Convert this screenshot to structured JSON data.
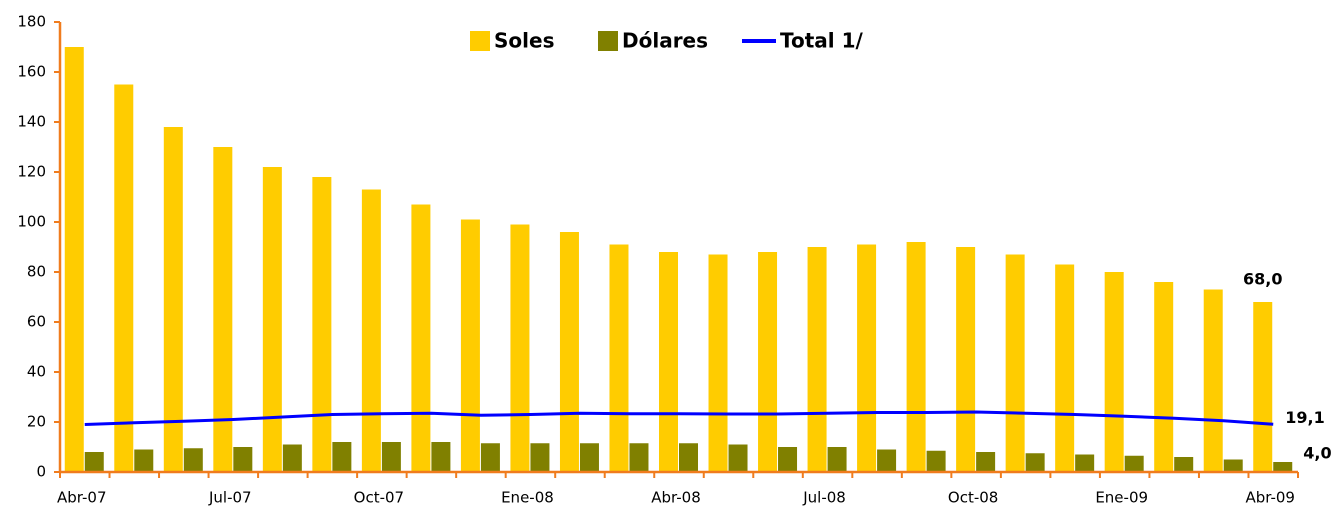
{
  "chart_data": {
    "type": "bar",
    "categories": [
      "Abr-07",
      null,
      null,
      "Jul-07",
      null,
      null,
      "Oct-07",
      null,
      null,
      "Ene-08",
      null,
      null,
      "Abr-08",
      null,
      null,
      "Jul-08",
      null,
      null,
      "Oct-08",
      null,
      null,
      "Ene-09",
      null,
      null,
      "Abr-09"
    ],
    "series": [
      {
        "name": "Soles",
        "color": "#ffcc00",
        "kind": "bar",
        "values": [
          170,
          155,
          138,
          130,
          122,
          118,
          113,
          107,
          101,
          99,
          96,
          91,
          88,
          87,
          88,
          90,
          91,
          92,
          90,
          87,
          83,
          80,
          76,
          73,
          68
        ],
        "value_labels": [
          null,
          null,
          null,
          null,
          null,
          null,
          null,
          null,
          null,
          null,
          null,
          null,
          null,
          null,
          null,
          null,
          null,
          null,
          null,
          null,
          null,
          null,
          null,
          null,
          "68,0"
        ]
      },
      {
        "name": "Dólares",
        "color": "#808000",
        "kind": "bar",
        "values": [
          8,
          9,
          9.5,
          10,
          11,
          12,
          12,
          12,
          11.5,
          11.5,
          11.5,
          11.5,
          11.5,
          11,
          10,
          10,
          9,
          8.5,
          8,
          7.5,
          7,
          6.5,
          6,
          5,
          4
        ],
        "value_labels": [
          null,
          null,
          null,
          null,
          null,
          null,
          null,
          null,
          null,
          null,
          null,
          null,
          null,
          null,
          null,
          null,
          null,
          null,
          null,
          null,
          null,
          null,
          null,
          null,
          "4,0"
        ]
      },
      {
        "name": "Total 1/",
        "color": "#0000ff",
        "kind": "line",
        "values": [
          19,
          19.7,
          20.3,
          21,
          22,
          23,
          23.3,
          23.5,
          22.7,
          23,
          23.5,
          23.3,
          23.3,
          23.2,
          23.2,
          23.5,
          23.8,
          23.8,
          24,
          23.5,
          23,
          22.3,
          21.5,
          20.5,
          19.1
        ],
        "value_labels": [
          null,
          null,
          null,
          null,
          null,
          null,
          null,
          null,
          null,
          null,
          null,
          null,
          null,
          null,
          null,
          null,
          null,
          null,
          null,
          null,
          null,
          null,
          null,
          null,
          "19,1"
        ]
      }
    ],
    "ylim": [
      0,
      180
    ],
    "yticks": [
      0,
      20,
      40,
      60,
      80,
      100,
      120,
      140,
      160,
      180
    ],
    "legend": "top",
    "axis_color": "#f07c1e"
  }
}
